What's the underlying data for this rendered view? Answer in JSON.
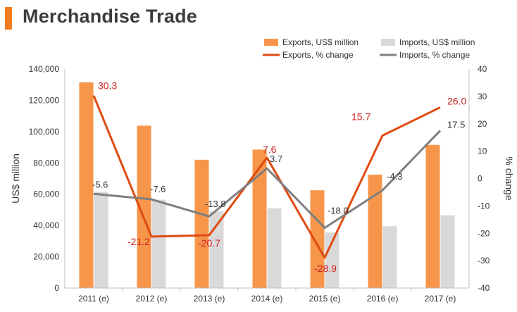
{
  "header": {
    "title": "Merchandise Trade"
  },
  "colors": {
    "exports_bar": "#f7964a",
    "imports_bar": "#d9d9d9",
    "exports_line": "#de4b12",
    "imports_line": "#7f7f7f",
    "line_label_exports": "#cc1f1f",
    "line_label_imports": "#333333",
    "axis_text": "#333333"
  },
  "chart_data": {
    "type": "bar",
    "categories": [
      "2011 (e)",
      "2012 (e)",
      "2013 (e)",
      "2014 (e)",
      "2015 (e)",
      "2016 (e)",
      "2017 (e)"
    ],
    "series": [
      {
        "name": "Exports, US$ million",
        "kind": "bar",
        "axis": "left",
        "values": [
          131500,
          103800,
          82000,
          88500,
          62500,
          72500,
          91500
        ]
      },
      {
        "name": "Imports, US$ million",
        "kind": "bar",
        "axis": "left",
        "values": [
          61500,
          56500,
          49000,
          51000,
          35500,
          39500,
          46500
        ]
      },
      {
        "name": "Exports, % change",
        "kind": "line",
        "axis": "right",
        "values": [
          30.3,
          -21.2,
          -20.7,
          7.6,
          -28.9,
          15.7,
          26.0
        ],
        "labels": [
          "30.3",
          "-21.2",
          "-20.7",
          "7.6",
          "-28.9",
          "15.7",
          "26.0"
        ]
      },
      {
        "name": "Imports, % change",
        "kind": "line",
        "axis": "right",
        "values": [
          -5.6,
          -7.6,
          -13.8,
          3.7,
          -18.0,
          -4.3,
          17.5
        ],
        "labels": [
          "-5.6",
          "-7.6",
          "-13.8",
          "3.7",
          "-18.0",
          "-4.3",
          "17.5"
        ]
      }
    ],
    "ylabel": "US$ million",
    "y2label": "% change",
    "ylim": [
      0,
      140000
    ],
    "y2lim": [
      -40,
      40
    ],
    "yticks": [
      0,
      20000,
      40000,
      60000,
      80000,
      100000,
      120000,
      140000
    ],
    "ytick_labels": [
      "0",
      "20,000",
      "40,000",
      "60,000",
      "80,000",
      "100,000",
      "120,000",
      "140,000"
    ],
    "y2ticks": [
      -40,
      -30,
      -20,
      -10,
      0,
      10,
      20,
      30,
      40
    ],
    "y2tick_labels": [
      "-40",
      "-30",
      "-20",
      "-10",
      "0",
      "10",
      "20",
      "30",
      "40"
    ],
    "grid": false,
    "legend_position": "top-right"
  }
}
